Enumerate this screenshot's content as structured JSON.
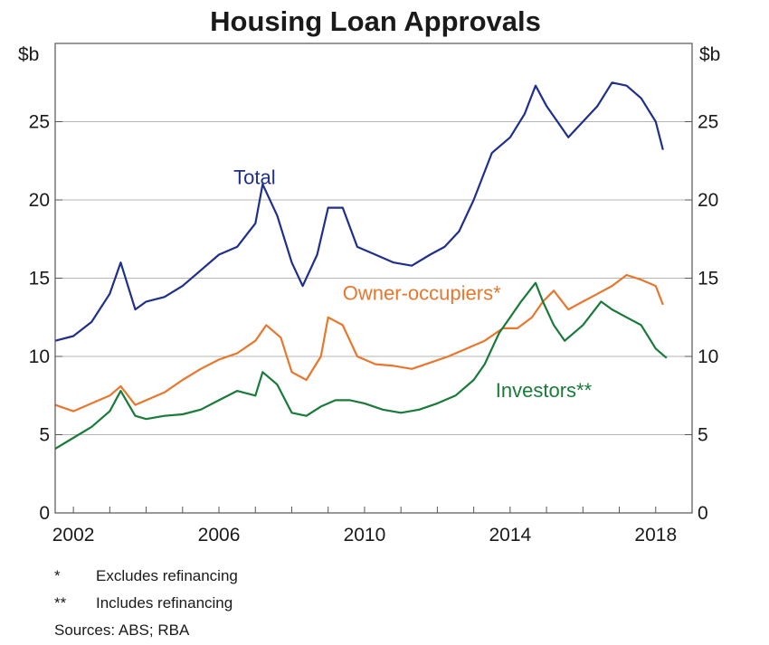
{
  "chart_data": {
    "type": "line",
    "title": "Housing Loan Approvals",
    "ylabel_left": "$b",
    "ylabel_right": "$b",
    "ylim": [
      0,
      30
    ],
    "yticks": [
      0,
      5,
      10,
      15,
      20,
      25
    ],
    "xlim": [
      2001.5,
      2019.0
    ],
    "xticks": [
      2002,
      2006,
      2010,
      2014,
      2018
    ],
    "grid": true,
    "legend": "inline labels",
    "series": [
      {
        "name": "Total",
        "color": "#1f2f8c",
        "x": [
          2001.5,
          2002.0,
          2002.5,
          2003.0,
          2003.3,
          2003.7,
          2004.0,
          2004.5,
          2005.0,
          2005.5,
          2006.0,
          2006.5,
          2007.0,
          2007.2,
          2007.6,
          2008.0,
          2008.3,
          2008.7,
          2009.0,
          2009.4,
          2009.8,
          2010.3,
          2010.8,
          2011.3,
          2011.8,
          2012.2,
          2012.6,
          2013.0,
          2013.5,
          2014.0,
          2014.4,
          2014.7,
          2015.0,
          2015.3,
          2015.6,
          2016.0,
          2016.4,
          2016.8,
          2017.2,
          2017.6,
          2018.0,
          2018.2
        ],
        "values": [
          11.0,
          11.3,
          12.2,
          14.0,
          16.0,
          13.0,
          13.5,
          13.8,
          14.5,
          15.5,
          16.5,
          17.0,
          18.5,
          21.0,
          19.0,
          16.0,
          14.5,
          16.5,
          19.5,
          19.5,
          17.0,
          16.5,
          16.0,
          15.8,
          16.5,
          17.0,
          18.0,
          20.0,
          23.0,
          24.0,
          25.5,
          27.3,
          26.0,
          25.0,
          24.0,
          25.0,
          26.0,
          27.5,
          27.3,
          26.5,
          25.0,
          23.2
        ]
      },
      {
        "name": "Owner-occupiers*",
        "color": "#e8772e",
        "x": [
          2001.5,
          2002.0,
          2002.5,
          2003.0,
          2003.3,
          2003.7,
          2004.0,
          2004.5,
          2005.0,
          2005.5,
          2006.0,
          2006.5,
          2007.0,
          2007.3,
          2007.7,
          2008.0,
          2008.4,
          2008.8,
          2009.0,
          2009.4,
          2009.8,
          2010.3,
          2010.8,
          2011.3,
          2011.8,
          2012.3,
          2012.8,
          2013.3,
          2013.8,
          2014.2,
          2014.6,
          2014.9,
          2015.2,
          2015.6,
          2016.0,
          2016.4,
          2016.8,
          2017.2,
          2017.6,
          2018.0,
          2018.2
        ],
        "values": [
          6.9,
          6.5,
          7.0,
          7.5,
          8.1,
          6.9,
          7.2,
          7.7,
          8.5,
          9.2,
          9.8,
          10.2,
          11.0,
          12.0,
          11.2,
          9.0,
          8.5,
          10.0,
          12.5,
          12.0,
          10.0,
          9.5,
          9.4,
          9.2,
          9.6,
          10.0,
          10.5,
          11.0,
          11.8,
          11.8,
          12.5,
          13.5,
          14.2,
          13.0,
          13.5,
          14.0,
          14.5,
          15.2,
          14.9,
          14.5,
          13.3
        ]
      },
      {
        "name": "Investors**",
        "color": "#1a7a3a",
        "x": [
          2001.5,
          2002.0,
          2002.5,
          2003.0,
          2003.3,
          2003.7,
          2004.0,
          2004.5,
          2005.0,
          2005.5,
          2006.0,
          2006.5,
          2007.0,
          2007.2,
          2007.6,
          2008.0,
          2008.4,
          2008.8,
          2009.2,
          2009.6,
          2010.0,
          2010.5,
          2011.0,
          2011.5,
          2012.0,
          2012.5,
          2013.0,
          2013.3,
          2013.7,
          2014.0,
          2014.3,
          2014.7,
          2014.9,
          2015.2,
          2015.5,
          2016.0,
          2016.5,
          2016.8,
          2017.2,
          2017.6,
          2018.0,
          2018.3
        ],
        "values": [
          4.1,
          4.8,
          5.5,
          6.5,
          7.8,
          6.2,
          6.0,
          6.2,
          6.3,
          6.6,
          7.2,
          7.8,
          7.5,
          9.0,
          8.2,
          6.4,
          6.2,
          6.8,
          7.2,
          7.2,
          7.0,
          6.6,
          6.4,
          6.6,
          7.0,
          7.5,
          8.5,
          9.5,
          11.5,
          12.5,
          13.5,
          14.7,
          13.5,
          12.0,
          11.0,
          12.0,
          13.5,
          13.0,
          12.5,
          12.0,
          10.5,
          9.9
        ]
      }
    ],
    "annotations": [
      {
        "text": "Total",
        "series": 0,
        "at": [
          2006.4,
          21.0
        ]
      },
      {
        "text": "Owner-occupiers*",
        "series": 1,
        "at": [
          2009.4,
          13.6
        ]
      },
      {
        "text": "Investors**",
        "series": 2,
        "at": [
          2013.6,
          7.4
        ]
      }
    ]
  },
  "footnotes": [
    {
      "symbol": "*",
      "text": "Excludes refinancing"
    },
    {
      "symbol": "**",
      "text": "Includes refinancing"
    }
  ],
  "sources": "Sources: ABS; RBA"
}
